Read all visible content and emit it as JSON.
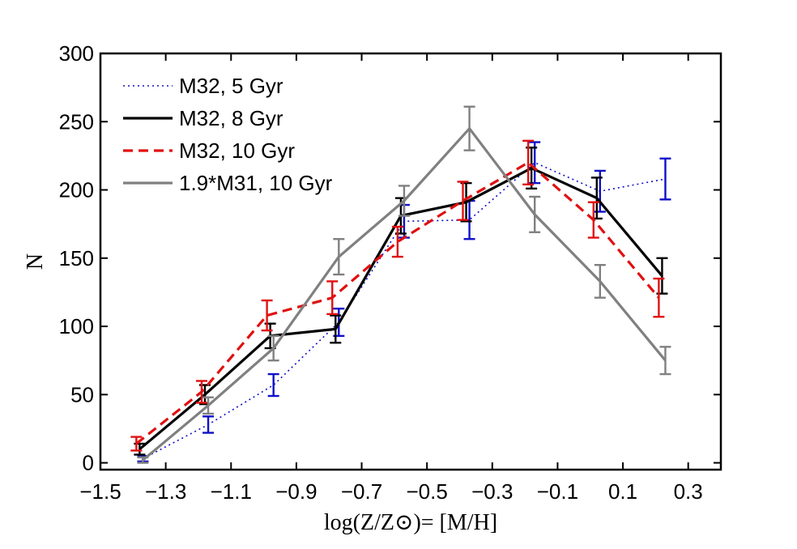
{
  "chart_data": {
    "type": "line",
    "title": "",
    "xlabel": "log(Z/Z⊙)= [M/H]",
    "ylabel": "N",
    "xlim": [
      -1.5,
      0.4
    ],
    "ylim": [
      -5,
      300
    ],
    "xticks": [
      -1.5,
      -1.3,
      -1.1,
      -0.9,
      -0.7,
      -0.5,
      -0.3,
      -0.1,
      0.1,
      0.3
    ],
    "xtick_labels": [
      "−1.5",
      "−1.3",
      "−1.1",
      "−0.9",
      "−0.7",
      "−0.5",
      "−0.3",
      "−0.1",
      "0.1",
      "0.3"
    ],
    "yticks": [
      0,
      50,
      100,
      150,
      200,
      250,
      300
    ],
    "ytick_labels": [
      "0",
      "50",
      "100",
      "150",
      "200",
      "250",
      "300"
    ],
    "grid": false,
    "legend_position": "top-left",
    "series": [
      {
        "name": "M32, 5 Gyr",
        "color": "#1010c8",
        "style": "dotted",
        "x": [
          -1.37,
          -1.17,
          -0.97,
          -0.77,
          -0.57,
          -0.37,
          -0.17,
          0.03,
          0.23
        ],
        "y": [
          3,
          28,
          57,
          103,
          177,
          178,
          220,
          199,
          208
        ],
        "err": [
          2,
          6,
          8,
          10,
          12,
          14,
          15,
          15,
          15
        ]
      },
      {
        "name": "M32, 8 Gyr",
        "color": "#000000",
        "style": "solid",
        "x": [
          -1.38,
          -1.18,
          -0.98,
          -0.78,
          -0.58,
          -0.38,
          -0.18,
          0.02,
          0.22
        ],
        "y": [
          10,
          50,
          93,
          98,
          181,
          191,
          216,
          194,
          137
        ],
        "err": [
          4,
          7,
          9,
          10,
          13,
          14,
          15,
          15,
          13
        ]
      },
      {
        "name": "M32, 10 Gyr",
        "color": "#e01010",
        "style": "dashed",
        "x": [
          -1.39,
          -1.19,
          -0.99,
          -0.79,
          -0.59,
          -0.39,
          -0.19,
          0.01,
          0.21
        ],
        "y": [
          14,
          52,
          108,
          121,
          162,
          192,
          220,
          178,
          121
        ],
        "err": [
          5,
          8,
          11,
          12,
          11,
          14,
          16,
          13,
          14
        ]
      },
      {
        "name": "1.9*M31, 10 Gyr",
        "color": "#808080",
        "style": "solid",
        "x": [
          -1.37,
          -1.17,
          -0.97,
          -0.77,
          -0.57,
          -0.37,
          -0.17,
          0.03,
          0.23
        ],
        "y": [
          2,
          42,
          84,
          151,
          192,
          245,
          182,
          133,
          75
        ],
        "err": [
          2,
          6,
          9,
          13,
          11,
          16,
          13,
          12,
          10
        ]
      }
    ]
  }
}
